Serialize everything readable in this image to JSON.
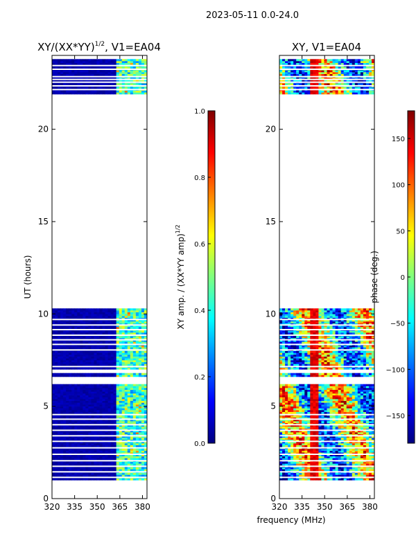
{
  "figure_title": "2023-05-11 0.0-24.0",
  "shared_xlabel": "frequency (MHz)",
  "colors": {
    "jet": [
      "#00007f",
      "#0000ff",
      "#007fff",
      "#00ffff",
      "#7fff7f",
      "#ffff00",
      "#ff7f00",
      "#ff0000",
      "#7f0000"
    ],
    "background": "#ffffff",
    "axis": "#000000"
  },
  "chart_data": [
    {
      "type": "heatmap",
      "title": "XY/(XX*YY)",
      "title_sup": "1/2",
      "title_suffix": ", V1=EA04",
      "xlabel": "",
      "ylabel": "UT (hours)",
      "xlim": [
        320,
        383
      ],
      "ylim": [
        0,
        24
      ],
      "xticks": [
        320,
        335,
        350,
        365,
        380
      ],
      "yticks": [
        0,
        5,
        10,
        15,
        20
      ],
      "colorbar": {
        "label": "XY amp. / (XX*YY amp)",
        "label_sup": "1/2",
        "vmin": 0.0,
        "vmax": 1.0,
        "ticks": [
          "0.0",
          "0.2",
          "0.4",
          "0.6",
          "0.8",
          "1.0"
        ],
        "tick_values": [
          0.0,
          0.2,
          0.4,
          0.6,
          0.8,
          1.0
        ]
      },
      "data_blocks_hours": [
        [
          1.0,
          6.2
        ],
        [
          6.6,
          6.8
        ],
        [
          7.0,
          10.3
        ],
        [
          21.9,
          23.8
        ]
      ],
      "gap_rows_hours": [
        1.15,
        1.45,
        1.75,
        2.05,
        2.4,
        2.75,
        3.1,
        3.4,
        3.7,
        4.0,
        4.3,
        4.55,
        7.15,
        8.05,
        8.35,
        8.6,
        8.85,
        9.15,
        9.4,
        9.7,
        22.15,
        22.35,
        22.55,
        22.7,
        22.85,
        23.25,
        23.45
      ]
    },
    {
      "type": "heatmap",
      "title": "XY, V1=EA04",
      "xlabel": "",
      "ylabel": "",
      "xlim": [
        320,
        383
      ],
      "ylim": [
        0,
        24
      ],
      "xticks": [
        320,
        335,
        350,
        365,
        380
      ],
      "yticks": [
        0,
        5,
        10,
        15,
        20
      ],
      "colorbar": {
        "label": "phase (deg.)",
        "vmin": -180,
        "vmax": 180,
        "ticks": [
          "−150",
          "−100",
          "−50",
          "0",
          "50",
          "100",
          "150"
        ],
        "tick_values": [
          -150,
          -100,
          -50,
          0,
          50,
          100,
          150
        ]
      },
      "data_blocks_hours": [
        [
          1.0,
          6.2
        ],
        [
          6.6,
          6.8
        ],
        [
          7.0,
          10.3
        ],
        [
          21.9,
          23.8
        ]
      ],
      "gap_rows_hours": [
        1.15,
        1.45,
        1.75,
        2.05,
        2.4,
        2.75,
        3.1,
        3.4,
        3.7,
        4.0,
        4.3,
        4.55,
        7.15,
        8.05,
        8.35,
        8.6,
        8.85,
        9.15,
        9.4,
        9.7,
        22.15,
        22.35,
        22.55,
        22.7,
        22.85,
        23.25,
        23.45
      ]
    }
  ]
}
